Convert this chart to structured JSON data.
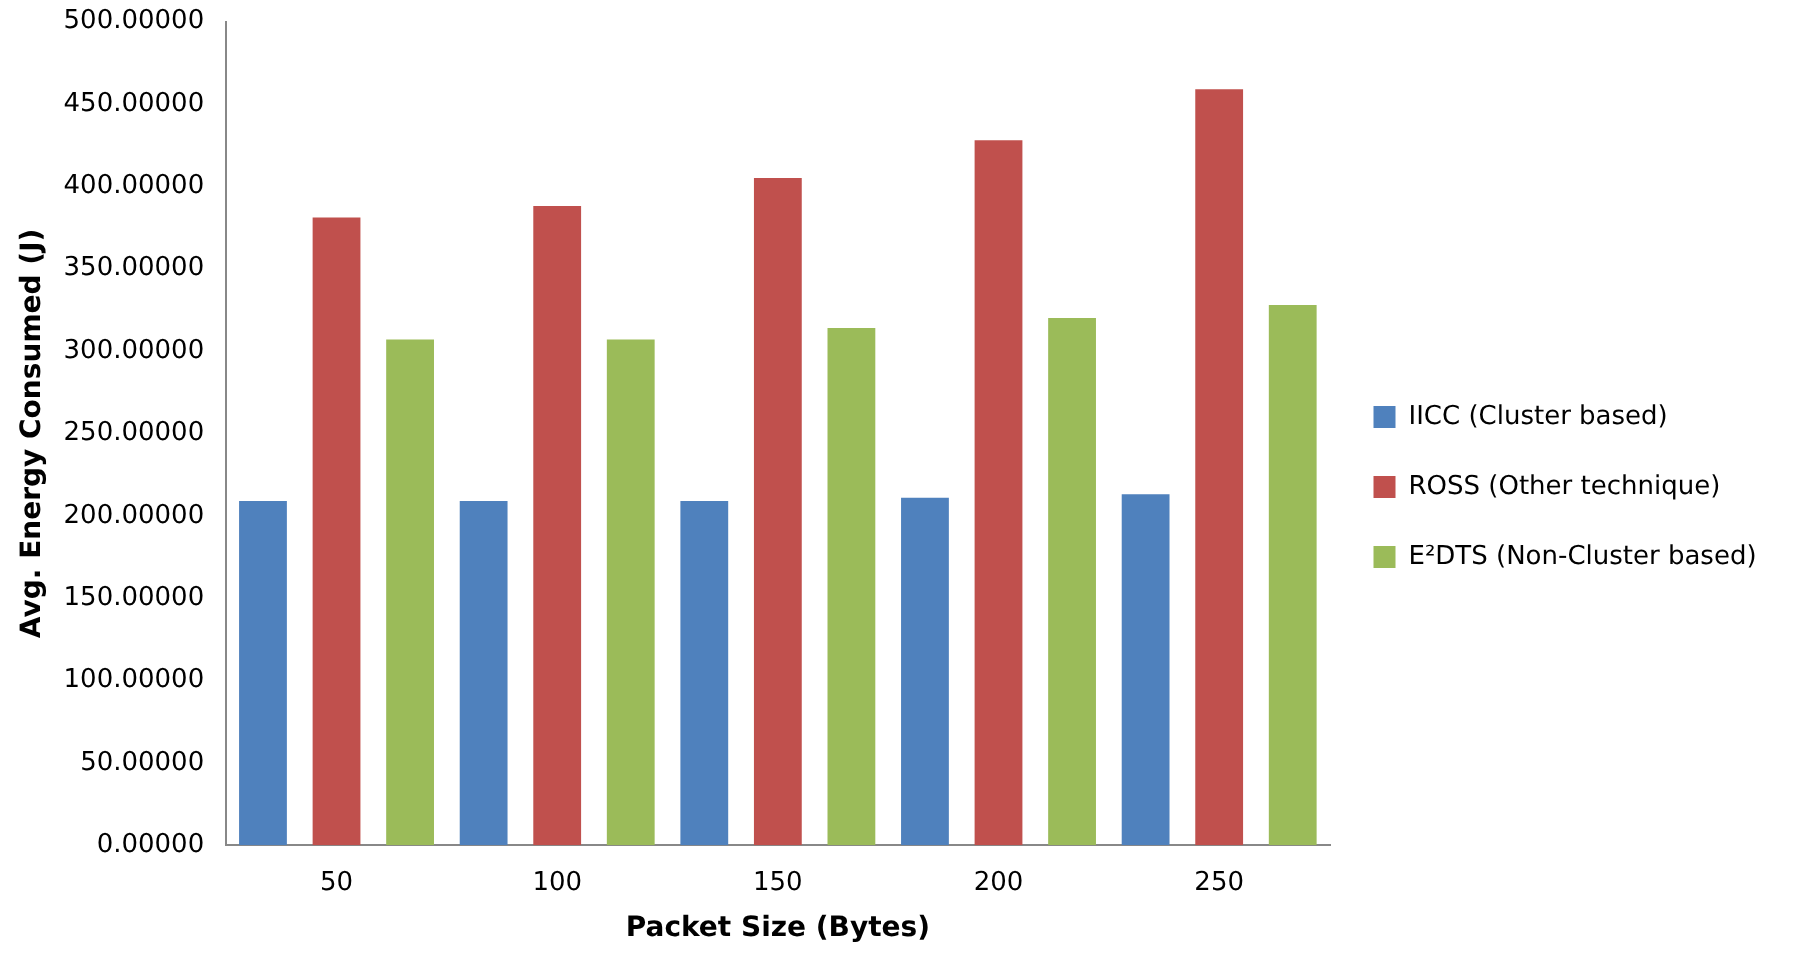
{
  "chart_data": {
    "type": "bar",
    "xlabel": "Packet Size (Bytes)",
    "ylabel": "Avg. Energy Consumed (J)",
    "categories": [
      "50",
      "100",
      "150",
      "200",
      "250"
    ],
    "series": [
      {
        "name": "IICC (Cluster based)",
        "color": "#4f81bd",
        "values": [
          209,
          209,
          209,
          211,
          213
        ]
      },
      {
        "name": "ROSS (Other technique)",
        "color": "#c0504d",
        "values": [
          381,
          388,
          405,
          428,
          459
        ]
      },
      {
        "name": "E²DTS (Non-Cluster based)",
        "color": "#9bbb59",
        "values": [
          307,
          307,
          314,
          320,
          328
        ]
      }
    ],
    "ylim": [
      0,
      500
    ],
    "yticks": [
      {
        "value": 0,
        "label": "0.00000"
      },
      {
        "value": 50,
        "label": "50.00000"
      },
      {
        "value": 100,
        "label": "100.00000"
      },
      {
        "value": 150,
        "label": "150.00000"
      },
      {
        "value": 200,
        "label": "200.00000"
      },
      {
        "value": 250,
        "label": "250.00000"
      },
      {
        "value": 300,
        "label": "300.00000"
      },
      {
        "value": 350,
        "label": "350.00000"
      },
      {
        "value": 400,
        "label": "400.00000"
      },
      {
        "value": 450,
        "label": "450.00000"
      },
      {
        "value": 500,
        "label": "500.00000"
      }
    ],
    "grid": false,
    "legend": "right"
  }
}
